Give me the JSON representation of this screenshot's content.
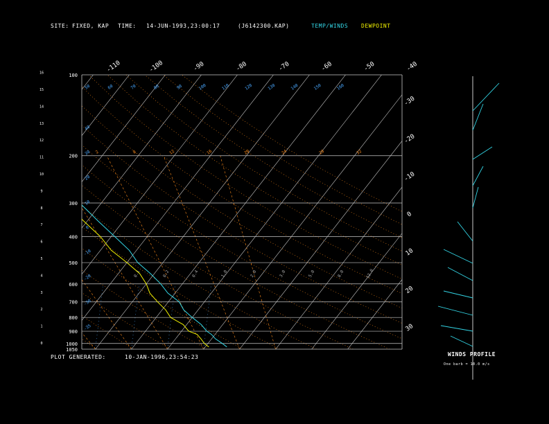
{
  "header": {
    "site_label": "SITE:",
    "site_value": "FIXED, KAP",
    "time_label": "TIME:",
    "time_value": "14-JUN-1993,23:00:17",
    "file_id": "(J6142300.KAP)",
    "temp_winds_label": "TEMP/WINDS",
    "dewpoint_label": "DEWPOINT"
  },
  "footer": {
    "generated_label": "PLOT GENERATED:",
    "generated_value": "10-JAN-1996,23:54:23"
  },
  "winds_panel": {
    "title": "WINDS PROFILE",
    "subtitle": "One barb = 10.0 m/s"
  },
  "colors": {
    "temperature": "#33d6e6",
    "dewpoint": "#f0f000",
    "isotherm": "#c8c8c8",
    "isobar": "#c8c8c8",
    "dry_adiabat": "#ff8c1a",
    "moist_adiabat": "#ff8c1a",
    "mixing_ratio": "#4aa8ff",
    "theta_e_labels": "#ff8c1a",
    "wind_barbs": "#33d6e6"
  },
  "chart_data": {
    "type": "line",
    "subtype": "skew-T log-P thermodynamic diagram",
    "y_axis_pressure_hPa": {
      "tick_labels": [
        "100",
        "200",
        "300",
        "400",
        "500",
        "600",
        "700",
        "800",
        "900",
        "1000",
        "1050"
      ],
      "ticks": [
        100,
        200,
        300,
        400,
        500,
        600,
        700,
        800,
        900,
        1000,
        1050
      ]
    },
    "y_axis_height_km": {
      "tick_labels": [
        "0",
        "1",
        "2",
        "3",
        "4",
        "5",
        "6",
        "7",
        "8",
        "9",
        "10",
        "11",
        "12",
        "13",
        "14",
        "15",
        "16"
      ]
    },
    "top_isotherm_labels": [
      "-110",
      "-100",
      "-90",
      "-80",
      "-70",
      "-60",
      "-50",
      "-40"
    ],
    "right_isotherm_labels": [
      "-30",
      "-20",
      "-10",
      "0",
      "10",
      "20",
      "30"
    ],
    "top_row_labels": [
      "50",
      "60",
      "70",
      "80",
      "90",
      "100",
      "110",
      "120",
      "130",
      "140",
      "150",
      "160"
    ],
    "theta_e_labels": [
      "2",
      "8",
      "12",
      "16",
      "20",
      "24",
      "28",
      "32"
    ],
    "mixing_ratio_labels": [
      "0.1",
      "0.2",
      "0.4",
      "1.0",
      "2.0",
      "3.0",
      "5.0",
      "8.0",
      "12.0"
    ],
    "left_side_labels": [
      "40",
      "30",
      "20",
      "10",
      "0",
      "-10",
      "-20",
      "-30",
      "-35"
    ],
    "series": [
      {
        "name": "TEMP/WINDS",
        "color": "#33d6e6",
        "pressure_hPa": [
          1030,
          1000,
          960,
          925,
          900,
          850,
          800,
          750,
          700,
          650,
          600,
          550,
          500,
          450,
          400,
          350,
          300,
          250,
          200,
          175,
          150,
          140
        ],
        "temperature_C": [
          26,
          24,
          21,
          19,
          17,
          14,
          10,
          6,
          3,
          -2,
          -6,
          -11,
          -17,
          -22,
          -29,
          -37,
          -46,
          -55,
          -63,
          -68,
          -72,
          -74
        ]
      },
      {
        "name": "DEWPOINT",
        "color": "#f0f000",
        "pressure_hPa": [
          1030,
          1000,
          960,
          925,
          900,
          850,
          800,
          750,
          700,
          650,
          600,
          550,
          500,
          450,
          400,
          350,
          300,
          250,
          200,
          175,
          150,
          140
        ],
        "temperature_C": [
          21,
          19,
          17,
          15,
          12,
          9,
          4,
          1,
          -3,
          -7,
          -10,
          -14,
          -20,
          -27,
          -33,
          -41,
          -50,
          -59,
          -67,
          -72,
          -77,
          -79
        ]
      }
    ],
    "wind_profile": {
      "units": "m/s",
      "barb_value": 10.0,
      "note": "visual wind barbs shown from surface to upper levels"
    }
  }
}
